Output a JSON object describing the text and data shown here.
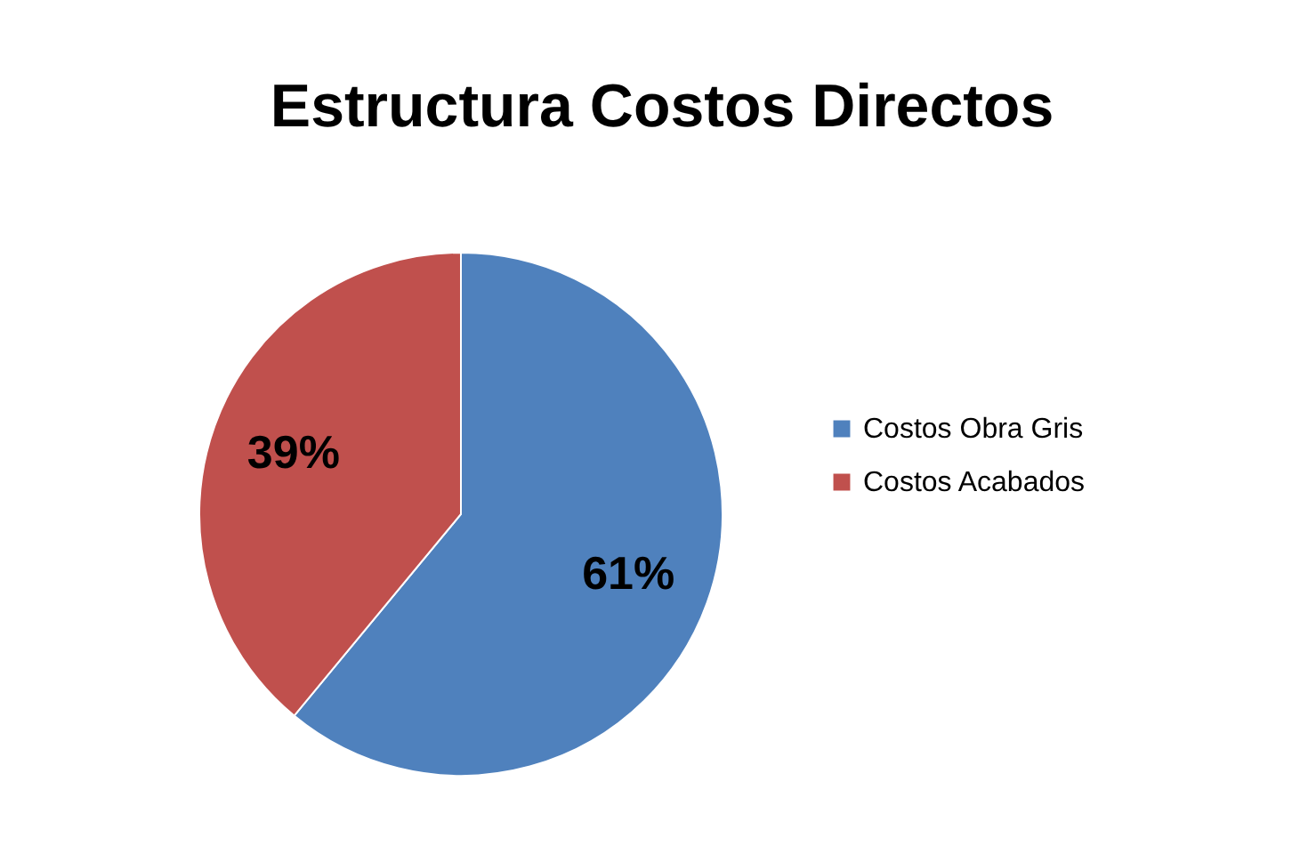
{
  "chart_data": {
    "type": "pie",
    "title": "Estructura Costos Directos",
    "categories": [
      "Costos Obra Gris",
      "Costos Acabados"
    ],
    "values": [
      61,
      39
    ],
    "colors": [
      "#4f81bd",
      "#c0504d"
    ],
    "value_labels": [
      "61%",
      "39%"
    ],
    "legend": "right"
  }
}
